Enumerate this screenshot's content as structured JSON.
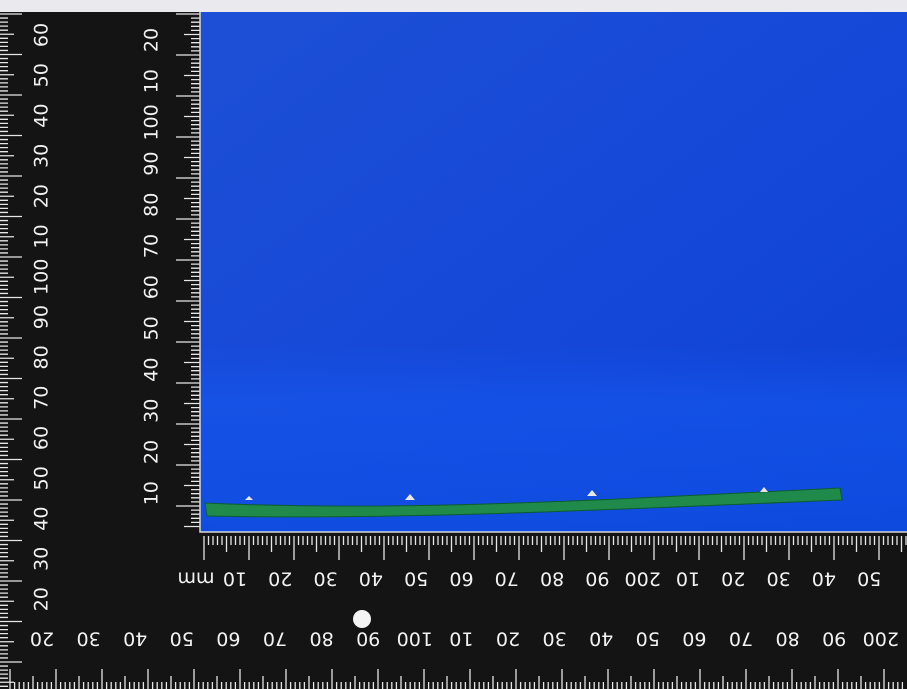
{
  "rulers": {
    "left_outer": {
      "labels": [
        "60",
        "50",
        "40",
        "30",
        "20",
        "10",
        "100",
        "90",
        "80",
        "70",
        "60",
        "50",
        "40",
        "30",
        "20"
      ]
    },
    "left_inner": {
      "labels": [
        "20",
        "10",
        "100",
        "90",
        "80",
        "70",
        "60",
        "50",
        "40",
        "30",
        "20",
        "10"
      ]
    },
    "bottom_inner": {
      "unit": "mm",
      "labels": [
        "10",
        "20",
        "30",
        "40",
        "50",
        "60",
        "70",
        "80",
        "90",
        "200",
        "10",
        "20",
        "30",
        "40",
        "50"
      ]
    },
    "bottom_outer": {
      "labels": [
        "20",
        "30",
        "40",
        "50",
        "60",
        "70",
        "80",
        "90",
        "100",
        "10",
        "20",
        "30",
        "40",
        "50",
        "60",
        "70",
        "80",
        "90",
        "200"
      ]
    }
  }
}
